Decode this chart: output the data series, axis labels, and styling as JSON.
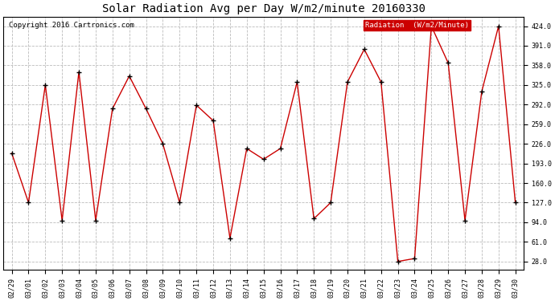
{
  "title": "Solar Radiation Avg per Day W/m2/minute 20160330",
  "copyright": "Copyright 2016 Cartronics.com",
  "legend_label": "Radiation  (W/m2/Minute)",
  "dates": [
    "02/29",
    "03/01",
    "03/02",
    "03/03",
    "03/04",
    "03/05",
    "03/06",
    "03/07",
    "03/08",
    "03/09",
    "03/10",
    "03/11",
    "03/12",
    "03/13",
    "03/14",
    "03/15",
    "03/16",
    "03/17",
    "03/18",
    "03/19",
    "03/20",
    "03/21",
    "03/22",
    "03/23",
    "03/24",
    "03/25",
    "03/26",
    "03/27",
    "03/28",
    "03/29",
    "03/30"
  ],
  "values": [
    210,
    127,
    325,
    97,
    347,
    97,
    285,
    340,
    285,
    226,
    127,
    291,
    265,
    67,
    218,
    200,
    218,
    330,
    100,
    127,
    330,
    385,
    330,
    28,
    33,
    424,
    362,
    97,
    314,
    424,
    127
  ],
  "line_color": "#cc0000",
  "marker": "+",
  "marker_color": "#000000",
  "marker_size": 4,
  "background_color": "#ffffff",
  "plot_bg_color": "#ffffff",
  "grid_color": "#bbbbbb",
  "grid_style": "--",
  "yticks": [
    28.0,
    61.0,
    94.0,
    127.0,
    160.0,
    193.0,
    226.0,
    259.0,
    292.0,
    325.0,
    358.0,
    391.0,
    424.0
  ],
  "ylim": [
    14,
    440
  ],
  "legend_bg": "#cc0000",
  "legend_text_color": "#ffffff",
  "title_fontsize": 10,
  "copyright_fontsize": 6.5,
  "tick_fontsize": 6,
  "legend_fontsize": 6.5
}
